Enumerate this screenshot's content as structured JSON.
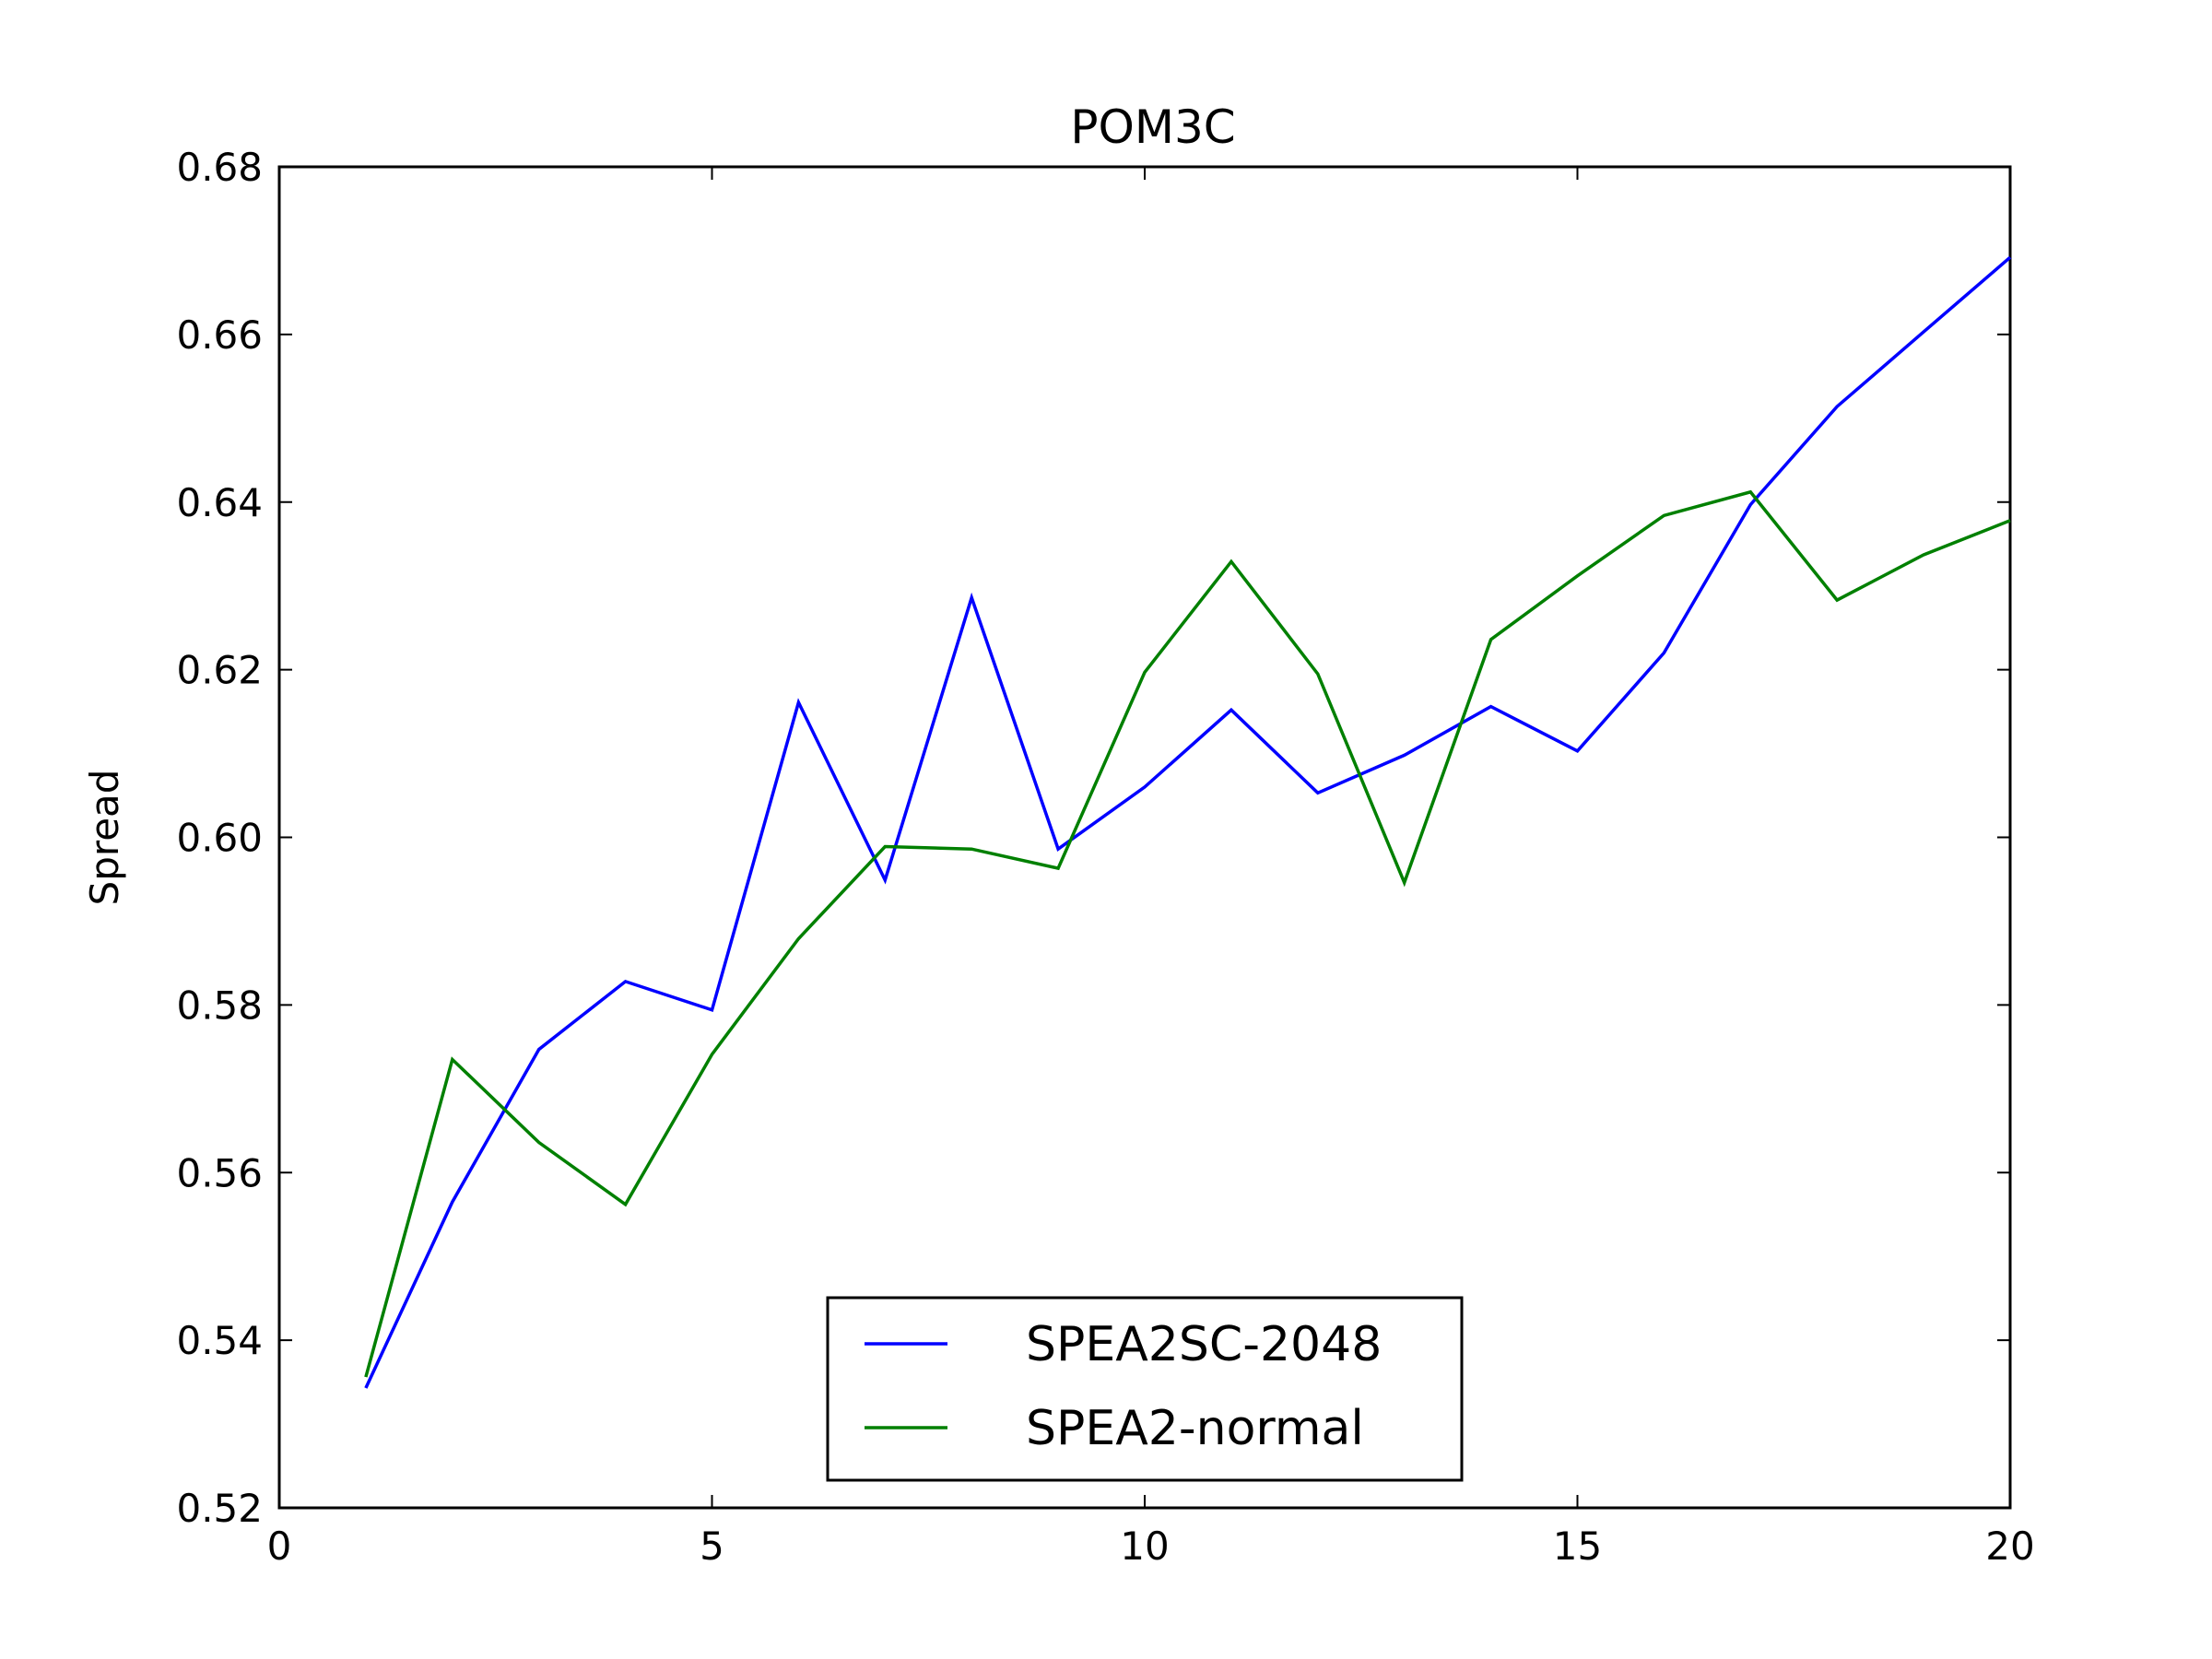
{
  "chart_data": {
    "type": "line",
    "title": "POM3C",
    "xlabel": "",
    "ylabel": "Spread",
    "xlim": [
      0,
      20
    ],
    "ylim": [
      0.52,
      0.68
    ],
    "xticks": [
      0,
      5,
      10,
      15,
      20
    ],
    "xtick_labels": [
      "0",
      "5",
      "10",
      "15",
      "20"
    ],
    "yticks": [
      0.52,
      0.54,
      0.56,
      0.58,
      0.6,
      0.62,
      0.64,
      0.66,
      0.68
    ],
    "ytick_labels": [
      "0.52",
      "0.54",
      "0.56",
      "0.58",
      "0.60",
      "0.62",
      "0.64",
      "0.66",
      "0.68"
    ],
    "grid": false,
    "legend_position": "bottom-center",
    "x": [
      1,
      2,
      3,
      4,
      5,
      6,
      7,
      8,
      9,
      10,
      11,
      12,
      13,
      14,
      15,
      16,
      17,
      18,
      19,
      20
    ],
    "series": [
      {
        "name": "SPEA2SC-2048",
        "color": "#0000ff",
        "values": [
          0.5343,
          0.5565,
          0.5747,
          0.5828,
          0.5794,
          0.6161,
          0.5949,
          0.6286,
          0.5986,
          0.606,
          0.6152,
          0.6053,
          0.6098,
          0.6156,
          0.6103,
          0.622,
          0.6397,
          0.6514,
          0.6603,
          0.6692
        ]
      },
      {
        "name": "SPEA2-normal",
        "color": "#008000",
        "values": [
          0.5356,
          0.5735,
          0.5636,
          0.5562,
          0.5741,
          0.5879,
          0.5989,
          0.5986,
          0.5963,
          0.6197,
          0.6329,
          0.6195,
          0.5946,
          0.6236,
          0.6312,
          0.6384,
          0.6412,
          0.6283,
          0.6337,
          0.6378
        ]
      }
    ]
  }
}
